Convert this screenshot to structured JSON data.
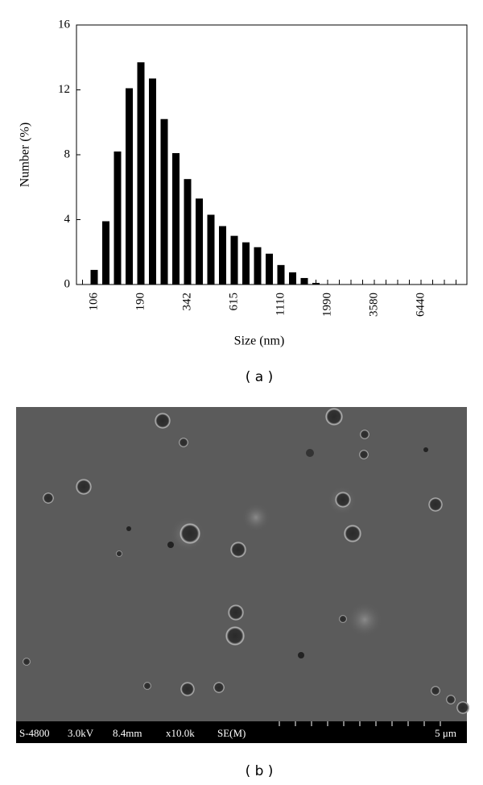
{
  "chart_data": {
    "type": "bar",
    "categories": [
      null,
      "106",
      null,
      null,
      null,
      "190",
      null,
      null,
      null,
      "342",
      null,
      null,
      null,
      "615",
      null,
      null,
      null,
      "1110",
      null,
      null,
      null,
      "1990",
      null,
      null,
      null,
      "3580",
      null,
      null,
      null,
      "6440",
      null,
      null,
      null
    ],
    "values": [
      0,
      0.9,
      3.9,
      8.2,
      12.1,
      13.7,
      12.7,
      10.2,
      8.1,
      6.5,
      5.3,
      4.3,
      3.6,
      3.0,
      2.6,
      2.3,
      1.9,
      1.2,
      0.75,
      0.4,
      0.1,
      0,
      0,
      0,
      0,
      0,
      0,
      0,
      0,
      0,
      0,
      0,
      0
    ],
    "color": "#000000",
    "ylim": [
      0,
      16
    ],
    "yticks": [
      0,
      4,
      8,
      12,
      16
    ],
    "ylabel": "Number (%)",
    "xlabel": "Size (nm)",
    "caption": "( a )"
  },
  "image": {
    "info": [
      "S-4800",
      "3.0kV",
      "8.4mm",
      "x10.0k",
      "SE(M)"
    ],
    "scale": "5 μm",
    "caption": "( b )"
  }
}
